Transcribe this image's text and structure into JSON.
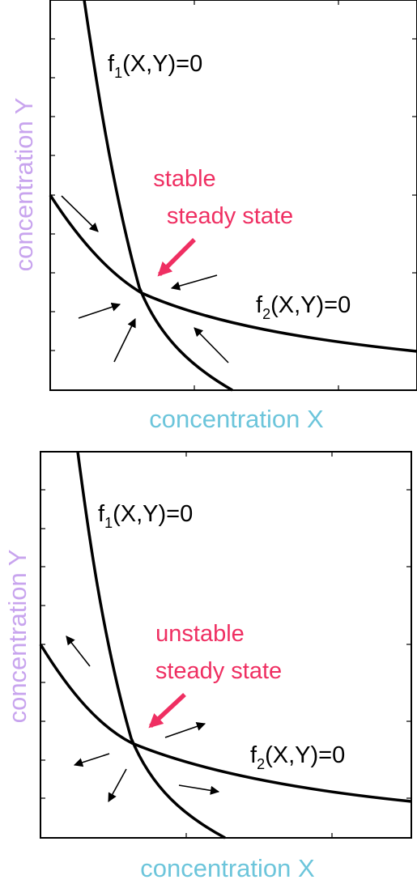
{
  "colors": {
    "x_label": "#6cc5db",
    "y_label": "#c8a4ee",
    "annotation": "#ef2f62",
    "ink": "#000000"
  },
  "panels": [
    {
      "id": "stable",
      "curve1": {
        "f": "f",
        "sub": "1",
        "args": "(X,Y)=0"
      },
      "curve2": {
        "f": "f",
        "sub": "2",
        "args": "(X,Y)=0"
      },
      "annotation": [
        "stable",
        "steady state"
      ],
      "xlabel": "concentration X",
      "ylabel": "concentration Y",
      "flow": "toward steady state"
    },
    {
      "id": "unstable",
      "curve1": {
        "f": "f",
        "sub": "1",
        "args": "(X,Y)=0"
      },
      "curve2": {
        "f": "f",
        "sub": "2",
        "args": "(X,Y)=0"
      },
      "annotation": [
        "unstable",
        "steady state"
      ],
      "xlabel": "concentration X",
      "ylabel": "concentration Y",
      "flow": "away from steady state"
    }
  ]
}
